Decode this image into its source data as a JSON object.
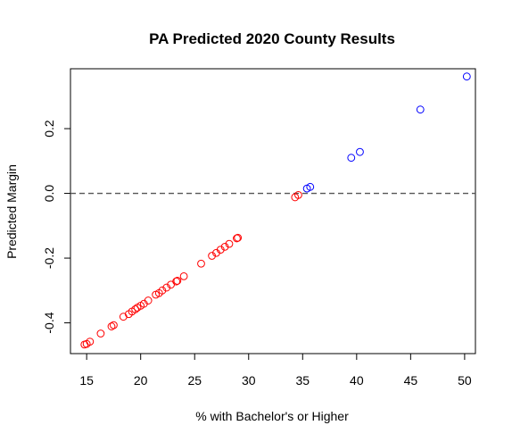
{
  "chart_data": {
    "type": "scatter",
    "title": "PA  Predicted 2020 County Results",
    "xlabel": "% with Bachelor's or Higher",
    "ylabel": "Predicted Margin",
    "xlim": [
      13.5,
      51.0
    ],
    "ylim": [
      -0.495,
      0.385
    ],
    "xticks": [
      15,
      20,
      25,
      30,
      35,
      40,
      45,
      50
    ],
    "xtick_labels": [
      "15",
      "20",
      "25",
      "30",
      "35",
      "40",
      "45",
      "50"
    ],
    "yticks": [
      -0.4,
      -0.2,
      0.0,
      0.2
    ],
    "ytick_labels": [
      "-0.4",
      "-0.2",
      "0.0",
      "0.2"
    ],
    "grid": false,
    "reference_line": {
      "y": 0.0,
      "style": "dashed",
      "color": "#555555"
    },
    "colors": {
      "negative": "#ff0000",
      "positive": "#0000ff"
    },
    "series": [
      {
        "color": "#ff0000",
        "marker": "open-circle",
        "points": [
          [
            14.8,
            -0.467
          ],
          [
            15.0,
            -0.465
          ],
          [
            15.3,
            -0.458
          ],
          [
            16.3,
            -0.433
          ],
          [
            17.3,
            -0.411
          ],
          [
            17.5,
            -0.407
          ],
          [
            18.4,
            -0.381
          ],
          [
            18.9,
            -0.373
          ],
          [
            19.2,
            -0.365
          ],
          [
            19.5,
            -0.358
          ],
          [
            19.7,
            -0.353
          ],
          [
            20.0,
            -0.347
          ],
          [
            20.3,
            -0.341
          ],
          [
            20.7,
            -0.331
          ],
          [
            21.4,
            -0.313
          ],
          [
            21.7,
            -0.308
          ],
          [
            22.0,
            -0.3
          ],
          [
            22.4,
            -0.291
          ],
          [
            22.8,
            -0.282
          ],
          [
            23.3,
            -0.272
          ],
          [
            23.4,
            -0.27
          ],
          [
            24.0,
            -0.256
          ],
          [
            25.6,
            -0.217
          ],
          [
            26.6,
            -0.193
          ],
          [
            27.0,
            -0.184
          ],
          [
            27.4,
            -0.174
          ],
          [
            27.8,
            -0.165
          ],
          [
            28.2,
            -0.156
          ],
          [
            28.9,
            -0.139
          ],
          [
            29.0,
            -0.137
          ],
          [
            34.3,
            -0.012
          ],
          [
            34.6,
            -0.005
          ]
        ]
      },
      {
        "color": "#0000ff",
        "marker": "open-circle",
        "points": [
          [
            35.4,
            0.015
          ],
          [
            35.7,
            0.02
          ],
          [
            39.5,
            0.11
          ],
          [
            40.3,
            0.128
          ],
          [
            45.9,
            0.259
          ],
          [
            50.2,
            0.361
          ]
        ]
      }
    ]
  }
}
